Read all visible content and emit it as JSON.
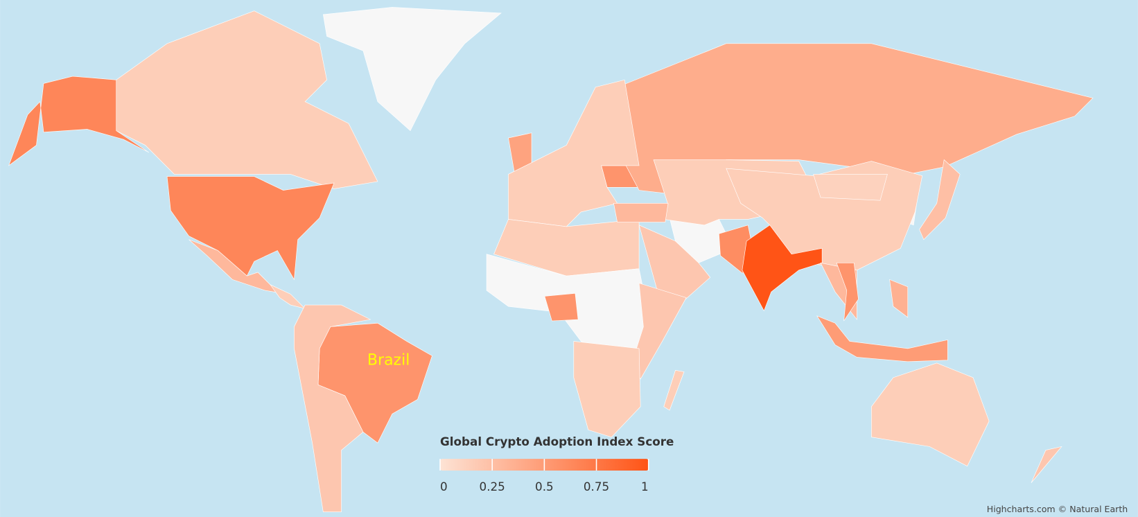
{
  "chart_data": {
    "type": "map",
    "legend_title": "Global Crypto Adoption Index Score",
    "values": [
      null,
      0.15,
      0.65,
      0.65,
      0.3,
      0.15,
      0.55,
      0.2,
      0.45,
      0.55,
      0.38,
      0.15,
      null,
      0.2,
      0.15,
      null,
      0.55,
      0.2,
      0.15,
      0.15,
      0.12,
      0.6,
      1,
      0.3,
      0.55,
      0.5,
      0.35,
      0.25,
      null,
      0.15,
      0.2,
      0.15,
      0.3
    ],
    "null_color": "#f7f7f7",
    "min_color": "#fde3d5",
    "max_color": "#ff5416",
    "colorlim": [
      0,
      1
    ],
    "colorticks": [
      0,
      0.25,
      0.5,
      0.75,
      1
    ],
    "data_labels": [
      {
        "text": "Brazil",
        "color": "#ffff00"
      }
    ],
    "background": "#c6e4f2",
    "credits": "Highcharts.com © Natural Earth"
  }
}
